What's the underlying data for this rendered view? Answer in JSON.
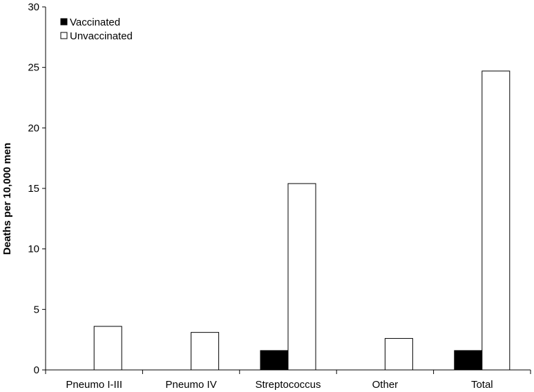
{
  "chart_data": {
    "type": "bar",
    "categories": [
      "Pneumo I-III",
      "Pneumo IV",
      "Streptococcus",
      "Other",
      "Total"
    ],
    "series": [
      {
        "name": "Vaccinated",
        "values": [
          0,
          0,
          1.6,
          0,
          1.6
        ],
        "color": "#000000"
      },
      {
        "name": "Unvaccinated",
        "values": [
          3.6,
          3.1,
          15.4,
          2.6,
          24.7
        ],
        "color": "#ffffff"
      }
    ],
    "ylabel": "Deaths per 10,000 men",
    "xlabel": "",
    "ylim": [
      0,
      30
    ],
    "yticks": [
      0,
      5,
      10,
      15,
      20,
      25,
      30
    ],
    "grid": false,
    "legend_position": "top-left"
  }
}
